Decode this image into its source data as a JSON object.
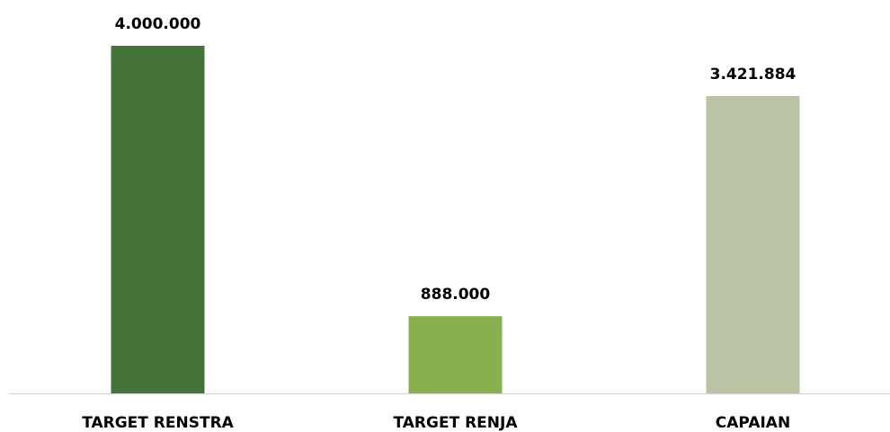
{
  "chart_data": {
    "type": "bar",
    "categories": [
      "TARGET RENSTRA",
      "TARGET RENJA",
      "CAPAIAN"
    ],
    "values": [
      4000000,
      888000,
      3421884
    ],
    "value_labels": [
      "4.000.000",
      "888.000",
      "3.421.884"
    ],
    "colors": [
      "#467339",
      "#88b04f",
      "#bac4a4"
    ]
  }
}
